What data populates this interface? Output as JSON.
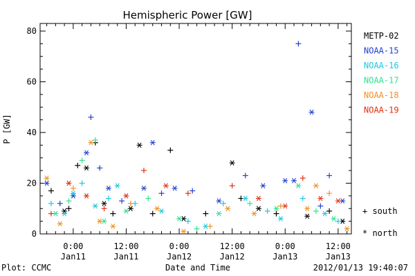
{
  "chart_data": {
    "type": "scatter",
    "title": "Hemispheric Power [GW]",
    "xlabel": "Date and Time",
    "ylabel": "P [GW]",
    "ylim": [
      0,
      83
    ],
    "xlim_hours": [
      -7.5,
      63
    ],
    "y_ticks": [
      0,
      20,
      40,
      60,
      80
    ],
    "x_ticks": [
      {
        "hour": 0,
        "time": "0:00",
        "date": "Jan11"
      },
      {
        "hour": 12,
        "time": "12:00",
        "date": "Jan11"
      },
      {
        "hour": 24,
        "time": "0:00",
        "date": "Jan12"
      },
      {
        "hour": 36,
        "time": "12:00",
        "date": "Jan12"
      },
      {
        "hour": 48,
        "time": "0:00",
        "date": "Jan13"
      },
      {
        "hour": 60,
        "time": "12:00",
        "date": "Jan13"
      }
    ],
    "x_axis_unit": "hours since 2012-01-11 00:00 UT",
    "marker_legend": [
      {
        "marker": "+",
        "label": "south"
      },
      {
        "marker": "*",
        "label": "north"
      }
    ],
    "legend_position": "right",
    "series": [
      {
        "name": "METP-02",
        "color": "#000000",
        "points": [
          [
            -5,
            17,
            "+"
          ],
          [
            -2,
            9,
            "*"
          ],
          [
            -1,
            10,
            "+"
          ],
          [
            1,
            27,
            "+"
          ],
          [
            3,
            26,
            "*"
          ],
          [
            5,
            36,
            "+"
          ],
          [
            7,
            12,
            "*"
          ],
          [
            9,
            8,
            "+"
          ],
          [
            13,
            10,
            "*"
          ],
          [
            15,
            35,
            "*"
          ],
          [
            18,
            8,
            "+"
          ],
          [
            22,
            33,
            "+"
          ],
          [
            25,
            6,
            "*"
          ],
          [
            30,
            8,
            "+"
          ],
          [
            36,
            28,
            "*"
          ],
          [
            38,
            14,
            "+"
          ],
          [
            42,
            10,
            "*"
          ],
          [
            46,
            8,
            "+"
          ],
          [
            53,
            7,
            "*"
          ],
          [
            58,
            9,
            "+"
          ],
          [
            61,
            5,
            "*"
          ]
        ]
      },
      {
        "name": "NOAA-15",
        "color": "#1f3fd0",
        "points": [
          [
            -6,
            20,
            "*"
          ],
          [
            -3,
            12,
            "+"
          ],
          [
            0,
            15,
            "*"
          ],
          [
            3,
            32,
            "*"
          ],
          [
            4,
            46,
            "+"
          ],
          [
            6,
            26,
            "+"
          ],
          [
            8,
            18,
            "*"
          ],
          [
            11,
            13,
            "+"
          ],
          [
            16,
            18,
            "*"
          ],
          [
            18,
            36,
            "*"
          ],
          [
            20,
            16,
            "+"
          ],
          [
            23,
            18,
            "*"
          ],
          [
            27,
            17,
            "+"
          ],
          [
            33,
            13,
            "*"
          ],
          [
            39,
            23,
            "+"
          ],
          [
            43,
            19,
            "*"
          ],
          [
            48,
            21,
            "*"
          ],
          [
            50,
            21,
            "*"
          ],
          [
            51,
            75,
            "+"
          ],
          [
            54,
            48,
            "*"
          ],
          [
            56,
            11,
            "+"
          ],
          [
            58,
            23,
            "+"
          ],
          [
            61,
            13,
            "*"
          ]
        ]
      },
      {
        "name": "NOAA-16",
        "color": "#19c8e0",
        "points": [
          [
            -5,
            12,
            "+"
          ],
          [
            -2,
            8,
            "*"
          ],
          [
            0,
            16,
            "*"
          ],
          [
            2,
            20,
            "+"
          ],
          [
            5,
            11,
            "*"
          ],
          [
            8,
            14,
            "+"
          ],
          [
            10,
            19,
            "*"
          ],
          [
            14,
            12,
            "+"
          ],
          [
            20,
            9,
            "*"
          ],
          [
            26,
            5,
            "+"
          ],
          [
            30,
            3,
            "*"
          ],
          [
            34,
            12,
            "+"
          ],
          [
            39,
            14,
            "*"
          ],
          [
            44,
            9,
            "+"
          ],
          [
            47,
            6,
            "*"
          ],
          [
            52,
            14,
            "+"
          ],
          [
            57,
            8,
            "*"
          ],
          [
            60,
            5,
            "+"
          ]
        ]
      },
      {
        "name": "NOAA-17",
        "color": "#30e090",
        "points": [
          [
            -4,
            8,
            "*"
          ],
          [
            -1,
            13,
            "+"
          ],
          [
            2,
            29,
            "+"
          ],
          [
            5,
            37,
            "+"
          ],
          [
            7,
            5,
            "*"
          ],
          [
            12,
            9,
            "*"
          ],
          [
            17,
            14,
            "+"
          ],
          [
            24,
            6,
            "*"
          ],
          [
            28,
            2,
            "+"
          ],
          [
            33,
            8,
            "*"
          ],
          [
            40,
            12,
            "+"
          ],
          [
            46,
            10,
            "*"
          ],
          [
            51,
            19,
            "*"
          ],
          [
            55,
            9,
            "+"
          ],
          [
            59,
            6,
            "*"
          ]
        ]
      },
      {
        "name": "NOAA-18",
        "color": "#f09020",
        "points": [
          [
            -6,
            22,
            "*"
          ],
          [
            -3,
            4,
            "*"
          ],
          [
            0,
            18,
            "+"
          ],
          [
            4,
            36,
            "*"
          ],
          [
            6,
            5,
            "*"
          ],
          [
            9,
            3,
            "*"
          ],
          [
            13,
            12,
            "+"
          ],
          [
            19,
            10,
            "*"
          ],
          [
            25,
            1,
            "*"
          ],
          [
            31,
            3,
            "+"
          ],
          [
            35,
            10,
            "*"
          ],
          [
            41,
            8,
            "*"
          ],
          [
            47,
            11,
            "+"
          ],
          [
            53,
            10,
            "*"
          ],
          [
            55,
            19,
            "*"
          ],
          [
            58,
            16,
            "+"
          ],
          [
            62,
            2,
            "*"
          ]
        ]
      },
      {
        "name": "NOAA-19",
        "color": "#e03010",
        "points": [
          [
            -5,
            8,
            "+"
          ],
          [
            -1,
            20,
            "*"
          ],
          [
            3,
            15,
            "*"
          ],
          [
            7,
            10,
            "+"
          ],
          [
            12,
            15,
            "*"
          ],
          [
            16,
            25,
            "+"
          ],
          [
            21,
            19,
            "*"
          ],
          [
            26,
            16,
            "+"
          ],
          [
            36,
            19,
            "+"
          ],
          [
            42,
            14,
            "*"
          ],
          [
            48,
            11,
            "*"
          ],
          [
            52,
            22,
            "+"
          ],
          [
            56,
            14,
            "*"
          ],
          [
            60,
            13,
            "*"
          ]
        ]
      }
    ]
  },
  "footer": {
    "left": "Plot: CCMC",
    "center": "Date and Time",
    "right": "2012/01/13 19:40:07"
  }
}
